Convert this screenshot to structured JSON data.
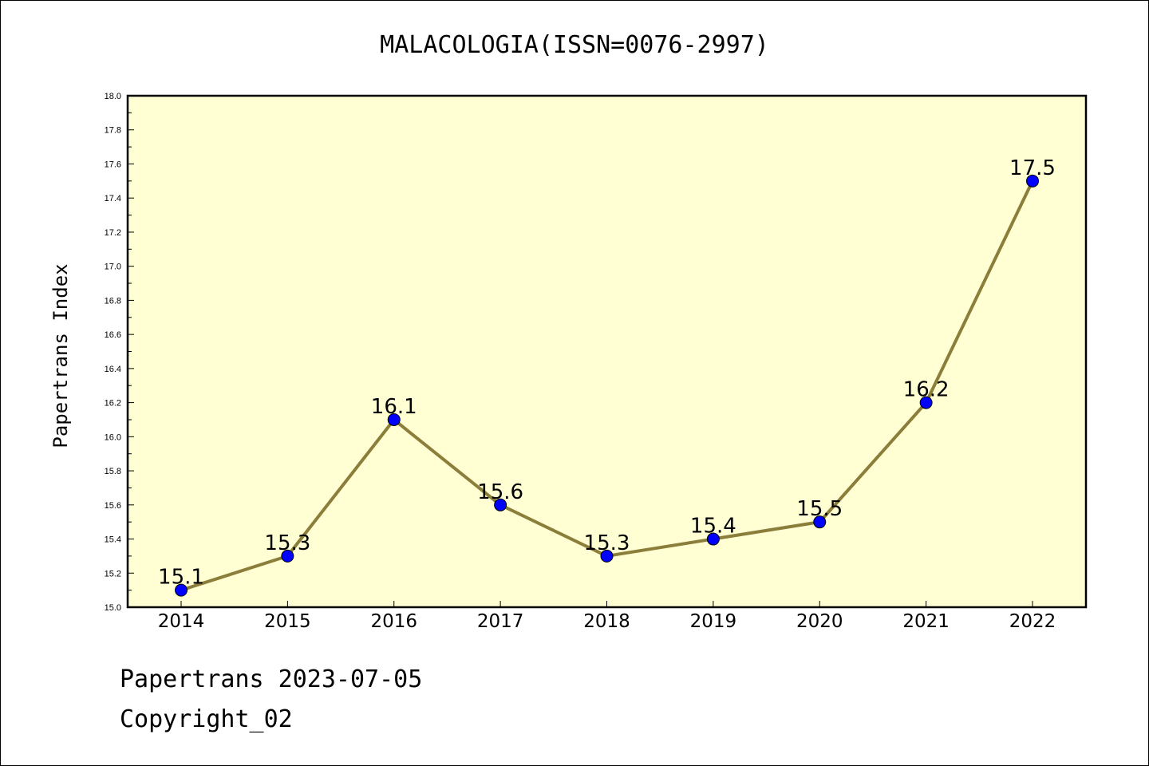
{
  "chart_data": {
    "type": "line",
    "title": "MALACOLOGIA(ISSN=0076-2997)",
    "xlabel": "",
    "ylabel": "Papertrans Index",
    "categories": [
      "2014",
      "2015",
      "2016",
      "2017",
      "2018",
      "2019",
      "2020",
      "2021",
      "2022"
    ],
    "series": [
      {
        "values": [
          15.1,
          15.3,
          16.1,
          15.6,
          15.3,
          15.4,
          15.5,
          16.2,
          17.5
        ],
        "data_labels": [
          "15.1",
          "15.3",
          "16.1",
          "15.6",
          "15.3",
          "15.4",
          "15.5",
          "16.2",
          "17.5"
        ]
      }
    ],
    "ylim": [
      15.0,
      18.0
    ],
    "yticks": [
      "15.0",
      "15.2",
      "15.4",
      "15.6",
      "15.8",
      "16.0",
      "16.2",
      "16.4",
      "16.6",
      "16.8",
      "17.0",
      "17.2",
      "17.4",
      "17.6",
      "17.8",
      "18.0"
    ],
    "grid": false,
    "legend": "none",
    "colors": {
      "plot_background": "#ffffd3",
      "line": "#8b7d3a",
      "marker": "#0000ff"
    }
  },
  "footer": {
    "date_line": "Papertrans 2023-07-05",
    "copyright": "Copyright_02"
  }
}
